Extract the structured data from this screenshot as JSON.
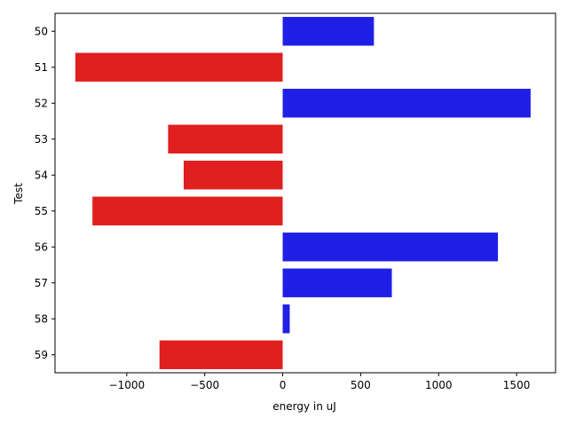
{
  "chart_data": {
    "type": "bar",
    "orientation": "horizontal",
    "title": "",
    "xlabel": "energy in uJ",
    "ylabel": "Test",
    "categories": [
      "50",
      "51",
      "52",
      "53",
      "54",
      "55",
      "56",
      "57",
      "58",
      "59"
    ],
    "values": [
      585,
      -1330,
      1590,
      -735,
      -635,
      -1220,
      1380,
      700,
      45,
      -790
    ],
    "xlim": [
      -1460,
      1750
    ],
    "xticks": [
      -1000,
      -500,
      0,
      500,
      1000,
      1500
    ],
    "xtick_labels": [
      "−1000",
      "−500",
      "0",
      "500",
      "1000",
      "1500"
    ],
    "colors": {
      "positive": "#1f1fe6",
      "negative": "#e01f1f"
    },
    "grid": false,
    "legend": "none"
  }
}
